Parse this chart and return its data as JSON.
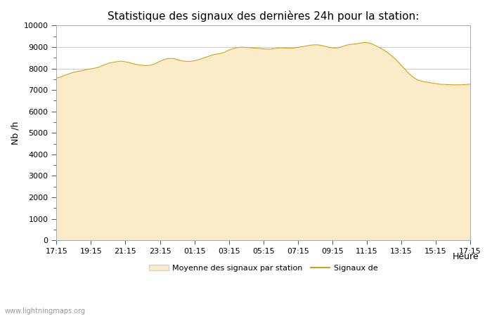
{
  "title": "Statistique des signaux des dernières 24h pour la station:",
  "xlabel": "Heure",
  "ylabel": "Nb /h",
  "x_ticks": [
    "17:15",
    "19:15",
    "21:15",
    "23:15",
    "01:15",
    "03:15",
    "05:15",
    "07:15",
    "09:15",
    "11:15",
    "13:15",
    "15:15",
    "17:15"
  ],
  "ylim": [
    0,
    10000
  ],
  "yticks": [
    0,
    1000,
    2000,
    3000,
    4000,
    5000,
    6000,
    7000,
    8000,
    9000,
    10000
  ],
  "fill_color": "#FAECC8",
  "line_color": "#D4A017",
  "bg_color": "#FFFFFF",
  "grid_color": "#CCCCCC",
  "watermark": "www.lightningmaps.org",
  "legend_fill_label": "Moyenne des signaux par station",
  "legend_line_label": "Signaux de",
  "area_values": [
    7550,
    7580,
    7620,
    7680,
    7720,
    7760,
    7800,
    7830,
    7860,
    7880,
    7900,
    7930,
    7960,
    7980,
    8000,
    8020,
    8050,
    8100,
    8150,
    8200,
    8240,
    8270,
    8290,
    8310,
    8330,
    8340,
    8320,
    8300,
    8270,
    8240,
    8210,
    8180,
    8160,
    8150,
    8140,
    8140,
    8150,
    8180,
    8230,
    8290,
    8350,
    8400,
    8440,
    8460,
    8470,
    8460,
    8430,
    8390,
    8360,
    8340,
    8330,
    8330,
    8340,
    8360,
    8390,
    8430,
    8470,
    8510,
    8550,
    8590,
    8630,
    8660,
    8680,
    8700,
    8730,
    8780,
    8840,
    8890,
    8930,
    8960,
    8980,
    8990,
    8990,
    8980,
    8970,
    8960,
    8950,
    8940,
    8930,
    8920,
    8910,
    8900,
    8900,
    8910,
    8930,
    8950,
    8960,
    8960,
    8950,
    8940,
    8940,
    8950,
    8970,
    8990,
    9010,
    9030,
    9050,
    9070,
    9090,
    9100,
    9100,
    9090,
    9070,
    9040,
    9010,
    8980,
    8960,
    8950,
    8960,
    8990,
    9030,
    9070,
    9100,
    9120,
    9130,
    9140,
    9160,
    9190,
    9210,
    9210,
    9190,
    9150,
    9100,
    9040,
    8980,
    8910,
    8840,
    8760,
    8670,
    8570,
    8460,
    8340,
    8210,
    8080,
    7950,
    7820,
    7700,
    7600,
    7520,
    7460,
    7420,
    7390,
    7370,
    7350,
    7330,
    7310,
    7290,
    7270,
    7260,
    7260,
    7250,
    7250,
    7240,
    7240,
    7240,
    7240,
    7240,
    7250,
    7260,
    7270
  ],
  "minor_tick_color": "#888888"
}
